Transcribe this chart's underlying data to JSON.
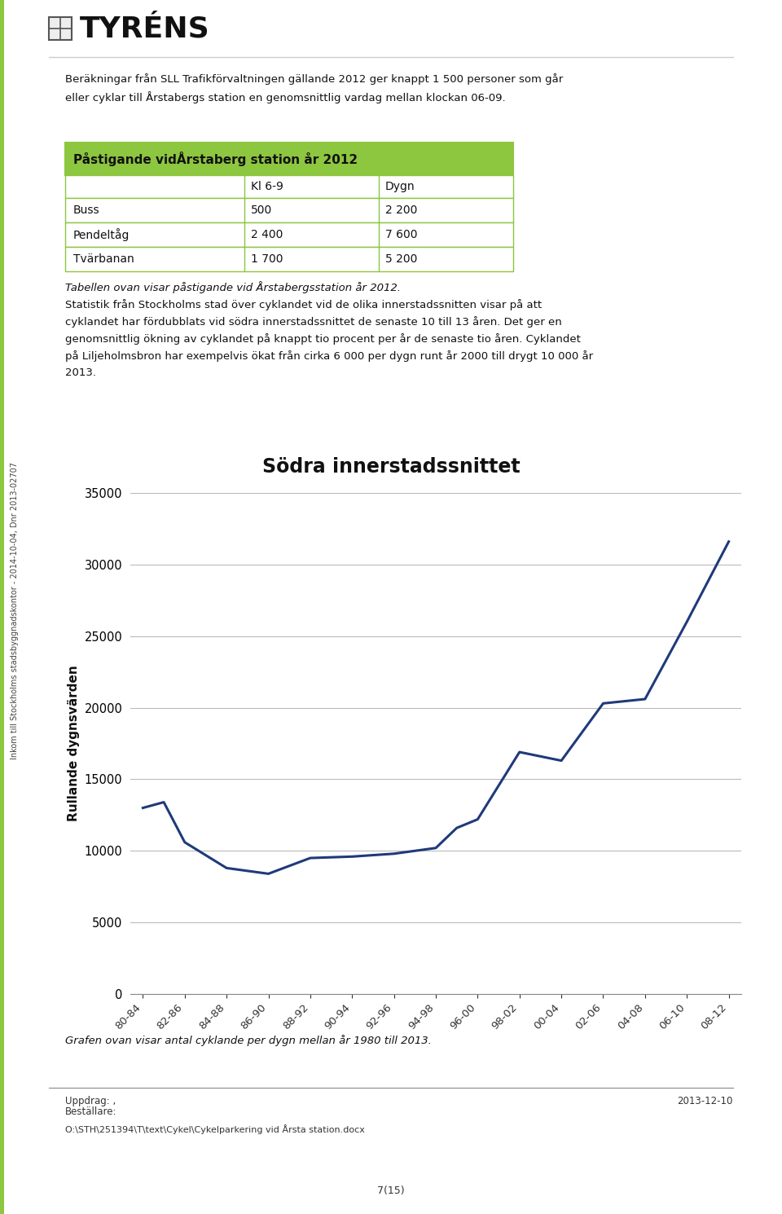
{
  "page_intro": "Beräkningar från SLL Trafikförvaltningen gällande 2012 ger knappt 1 500 personer som går\neller cyklar till Årstabergs station en genomsnittlig vardag mellan klockan 06-09.",
  "table_title": "Påstigande vidÅrstaberg station år 2012",
  "table_col_headers": [
    "",
    "Kl 6-9",
    "Dygn"
  ],
  "table_rows": [
    [
      "Buss",
      "500",
      "2 200"
    ],
    [
      "Pendeltåg",
      "2 400",
      "7 600"
    ],
    [
      "Tvärbanan",
      "1 700",
      "5 200"
    ]
  ],
  "table_caption": "Tabellen ovan visar påstigande vid Årstabergsstation år 2012.",
  "body_text": "Statistik från Stockholms stad över cyklandet vid de olika innerstadssnitten visar på att\ncyklandet har fördubblats vid södra innerstadssnittet de senaste 10 till 13 åren. Det ger en\ngenomsnittlig ökning av cyklandet på knappt tio procent per år de senaste tio åren. Cyklandet\npå Liljeholmsbron har exempelvis ökat från cirka 6 000 per dygn runt år 2000 till drygt 10 000 år\n2013.",
  "chart_title": "Södra innerstadssnittet",
  "chart_ylabel": "Rullande dygnsvärden",
  "chart_xlabels": [
    "80-84",
    "82-86",
    "84-88",
    "86-90",
    "88-92",
    "90-94",
    "92-96",
    "94-98",
    "96-00",
    "98-02",
    "00-04",
    "02-06",
    "04-08",
    "06-10",
    "08-12"
  ],
  "chart_ydata": [
    13000,
    13400,
    10600,
    8800,
    8400,
    9500,
    9600,
    9800,
    10200,
    11600,
    12200,
    16900,
    16300,
    20300,
    20600,
    26000,
    31600
  ],
  "chart_xdata": [
    0,
    0.5,
    1,
    2,
    3,
    4,
    5,
    6,
    7,
    7.5,
    8,
    9,
    10,
    11,
    12,
    13,
    14
  ],
  "chart_ylim": [
    0,
    35000
  ],
  "chart_yticks": [
    0,
    5000,
    10000,
    15000,
    20000,
    25000,
    30000,
    35000
  ],
  "line_color": "#1F3A7A",
  "graph_caption": "Grafen ovan visar antal cyklande per dygn mellan år 1980 till 2013.",
  "footer_uppdrag": "Uppdrag: ,",
  "footer_bestallare": "Beställare:",
  "footer_date": "2013-12-10",
  "footer_path": "O:\\STH\\251394\\T\\text\\Cykel\\Cykelparkering vid Årsta station.docx",
  "footer_page": "7(15)",
  "sidebar_text": "Inkom till Stockholms stadsbyggnadskontor - 2014-10-04, Dnr 2013-02707",
  "green_color": "#8DC63F",
  "border_color": "#8DC63F",
  "bg_color": "#FFFFFF",
  "text_color": "#111111",
  "logo_text": "TYRÉNS"
}
